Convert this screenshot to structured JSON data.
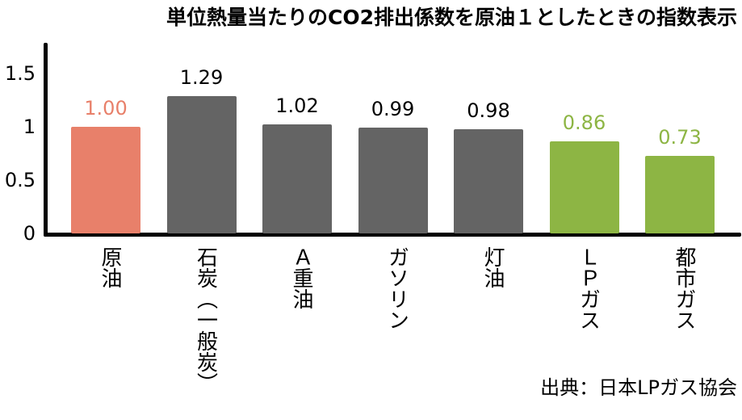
{
  "title": "単位熱量当たりのCO2排出係数を原油１としたときの指数表示",
  "source": "出典：日本LPガス協会",
  "colors": {
    "base": "#e8806a",
    "coal_oil": "#646464",
    "gas": "#8db544",
    "axis": "#000000"
  },
  "chart_data": {
    "type": "bar",
    "title": "単位熱量当たりのCO2排出係数を原油１としたときの指数表示",
    "xlabel": "",
    "ylabel": "",
    "ylim": [
      0,
      1.8
    ],
    "yticks": [
      "0",
      "0.5",
      "1",
      "1.5"
    ],
    "grid": false,
    "legend": "none",
    "categories": [
      "原油",
      "石炭（一般炭）",
      "Ａ重油",
      "ガソリン",
      "灯油",
      "ＬＰガス",
      "都市ガス"
    ],
    "values": [
      1.0,
      1.29,
      1.02,
      0.99,
      0.98,
      0.86,
      0.73
    ],
    "value_labels": [
      "1.00",
      "1.29",
      "1.02",
      "0.99",
      "0.98",
      "0.86",
      "0.73"
    ],
    "bar_colors": [
      "#e8806a",
      "#646464",
      "#646464",
      "#646464",
      "#646464",
      "#8db544",
      "#8db544"
    ],
    "annotation": "出典：日本LPガス協会"
  }
}
